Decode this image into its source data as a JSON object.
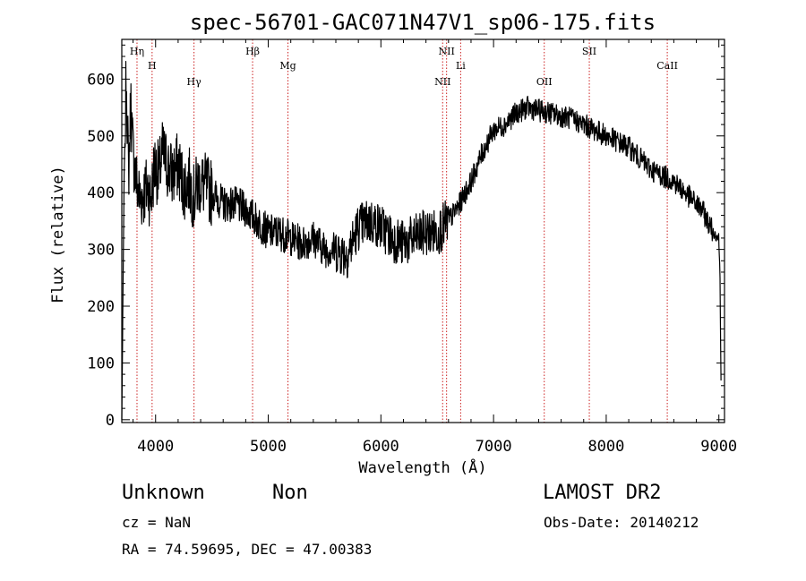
{
  "chart_data": {
    "type": "line",
    "title": "spec-56701-GAC071N47V1_sp06-175.fits",
    "xlabel": "Wavelength (Å)",
    "ylabel": "Flux (relative)",
    "xlim": [
      3700,
      9050
    ],
    "ylim": [
      -5,
      670
    ],
    "xticks": [
      4000,
      5000,
      6000,
      7000,
      8000,
      9000
    ],
    "yticks": [
      0,
      100,
      200,
      300,
      400,
      500,
      600
    ],
    "grid": false,
    "line_color": "#000000",
    "marker_color": "#cc2222",
    "spectral_lines": [
      {
        "label": "Hη",
        "wavelength": 3835
      },
      {
        "label": "H",
        "wavelength": 3969
      },
      {
        "label": "Hγ",
        "wavelength": 4341
      },
      {
        "label": "Hβ",
        "wavelength": 4861
      },
      {
        "label": "Mg",
        "wavelength": 5175
      },
      {
        "label": "NII",
        "wavelength": 6548
      },
      {
        "label": "NII",
        "wavelength": 6583
      },
      {
        "label": "Li",
        "wavelength": 6708
      },
      {
        "label": "OII",
        "wavelength": 7450
      },
      {
        "label": "SII",
        "wavelength": 7850
      },
      {
        "label": "CaII",
        "wavelength": 8542
      }
    ],
    "series": [
      {
        "x": [
          3700,
          3720,
          3740,
          3760,
          3780,
          3800,
          3830,
          3860,
          3900,
          3930,
          3960,
          3990,
          4030,
          4060,
          4100,
          4150,
          4200,
          4250,
          4300,
          4340,
          4380,
          4450,
          4500,
          4600,
          4700,
          4800,
          4900,
          5000,
          5100,
          5200,
          5300,
          5400,
          5500,
          5600,
          5700,
          5800,
          5900,
          6000,
          6100,
          6200,
          6300,
          6400,
          6500,
          6550,
          6600,
          6700,
          6800,
          6900,
          7000,
          7100,
          7200,
          7300,
          7400,
          7500,
          7600,
          7700,
          7800,
          7900,
          8000,
          8100,
          8200,
          8300,
          8400,
          8500,
          8600,
          8700,
          8800,
          8850,
          8900,
          8950,
          9000,
          9010,
          9020
        ],
        "y": [
          0,
          420,
          610,
          430,
          560,
          470,
          420,
          390,
          400,
          410,
          390,
          450,
          430,
          470,
          450,
          430,
          450,
          410,
          420,
          390,
          420,
          410,
          400,
          380,
          380,
          370,
          350,
          330,
          330,
          320,
          310,
          320,
          300,
          300,
          290,
          340,
          350,
          340,
          320,
          310,
          320,
          330,
          330,
          340,
          350,
          380,
          420,
          470,
          510,
          520,
          540,
          550,
          545,
          540,
          535,
          530,
          520,
          510,
          500,
          490,
          480,
          460,
          440,
          430,
          420,
          400,
          380,
          370,
          350,
          330,
          320,
          250,
          60
        ]
      }
    ]
  },
  "footer": {
    "object_class": "Unknown",
    "subclass": "Non",
    "survey": "LAMOST DR2",
    "redshift": "cz = NaN",
    "obs_date": "Obs-Date: 20140212",
    "coords": "RA =  74.59695, DEC =  47.00383"
  }
}
